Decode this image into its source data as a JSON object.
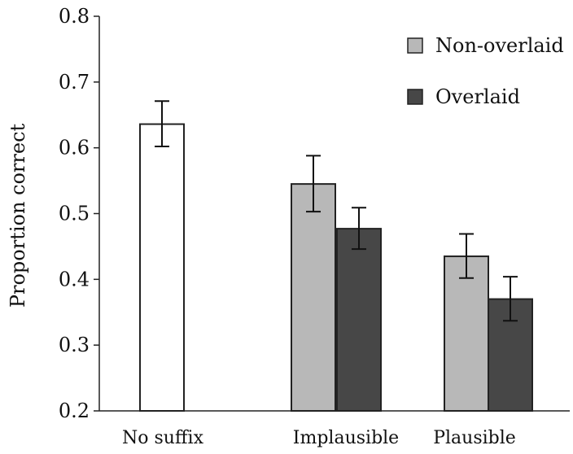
{
  "chart_data": {
    "type": "bar",
    "ylabel": "Proportion correct",
    "xlabel": "",
    "ylim": [
      0.2,
      0.8
    ],
    "yticks": [
      "0.2",
      "0.3",
      "0.4",
      "0.5",
      "0.6",
      "0.7",
      "0.8"
    ],
    "categories": [
      "No suffix",
      "Implausible",
      "Plausible"
    ],
    "legend": {
      "placement": "top-right"
    },
    "series": [
      {
        "key": "no-suffix",
        "color": "#ffffff",
        "values": [
          0.636,
          null,
          null
        ],
        "errors": [
          [
            0.602,
            0.671
          ],
          null,
          null
        ]
      },
      {
        "key": "non-overlaid",
        "name": "Non-overlaid",
        "color": "#b8b8b8",
        "values": [
          null,
          0.545,
          0.435
        ],
        "errors": [
          null,
          [
            0.503,
            0.588
          ],
          [
            0.402,
            0.469
          ]
        ]
      },
      {
        "key": "overlaid",
        "name": "Overlaid",
        "color": "#474747",
        "values": [
          null,
          0.477,
          0.37
        ],
        "errors": [
          null,
          [
            0.446,
            0.509
          ],
          [
            0.337,
            0.404
          ]
        ]
      }
    ]
  }
}
